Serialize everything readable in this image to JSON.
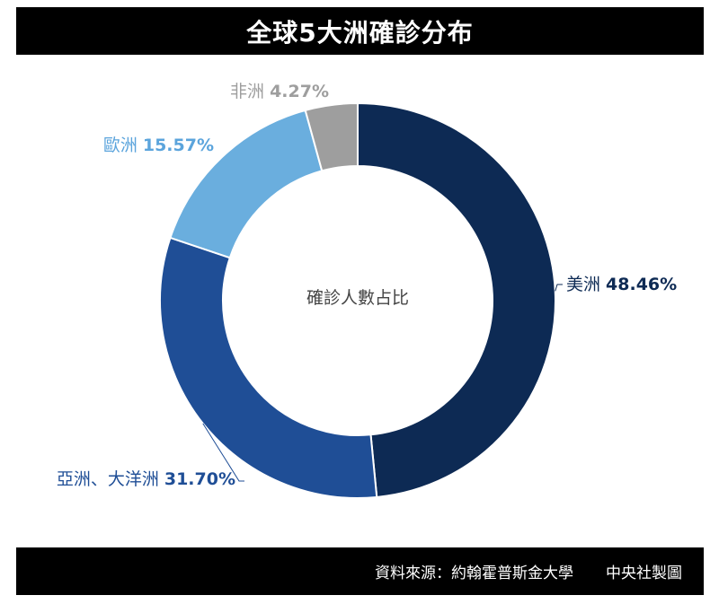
{
  "header": {
    "title": "全球5大洲確診分布"
  },
  "footer": {
    "source": "資料來源：約翰霍普斯金大學",
    "credit": "中央社製圖"
  },
  "chart_data": {
    "type": "pie",
    "donut": true,
    "center_label": "確診人數占比",
    "slices": [
      {
        "name": "美洲",
        "value": 48.46,
        "label": "48.46%",
        "color": "#0d2a54",
        "label_color": "#0d2a54"
      },
      {
        "name": "亞洲、大洋洲",
        "value": 31.7,
        "label": "31.70%",
        "color": "#1f4e96",
        "label_color": "#1f4e96"
      },
      {
        "name": "歐洲",
        "value": 15.57,
        "label": "15.57%",
        "color": "#6aaede",
        "label_color": "#5ba4dc"
      },
      {
        "name": "非洲",
        "value": 4.27,
        "label": "4.27%",
        "color": "#9e9e9e",
        "label_color": "#9e9e9e"
      }
    ]
  }
}
